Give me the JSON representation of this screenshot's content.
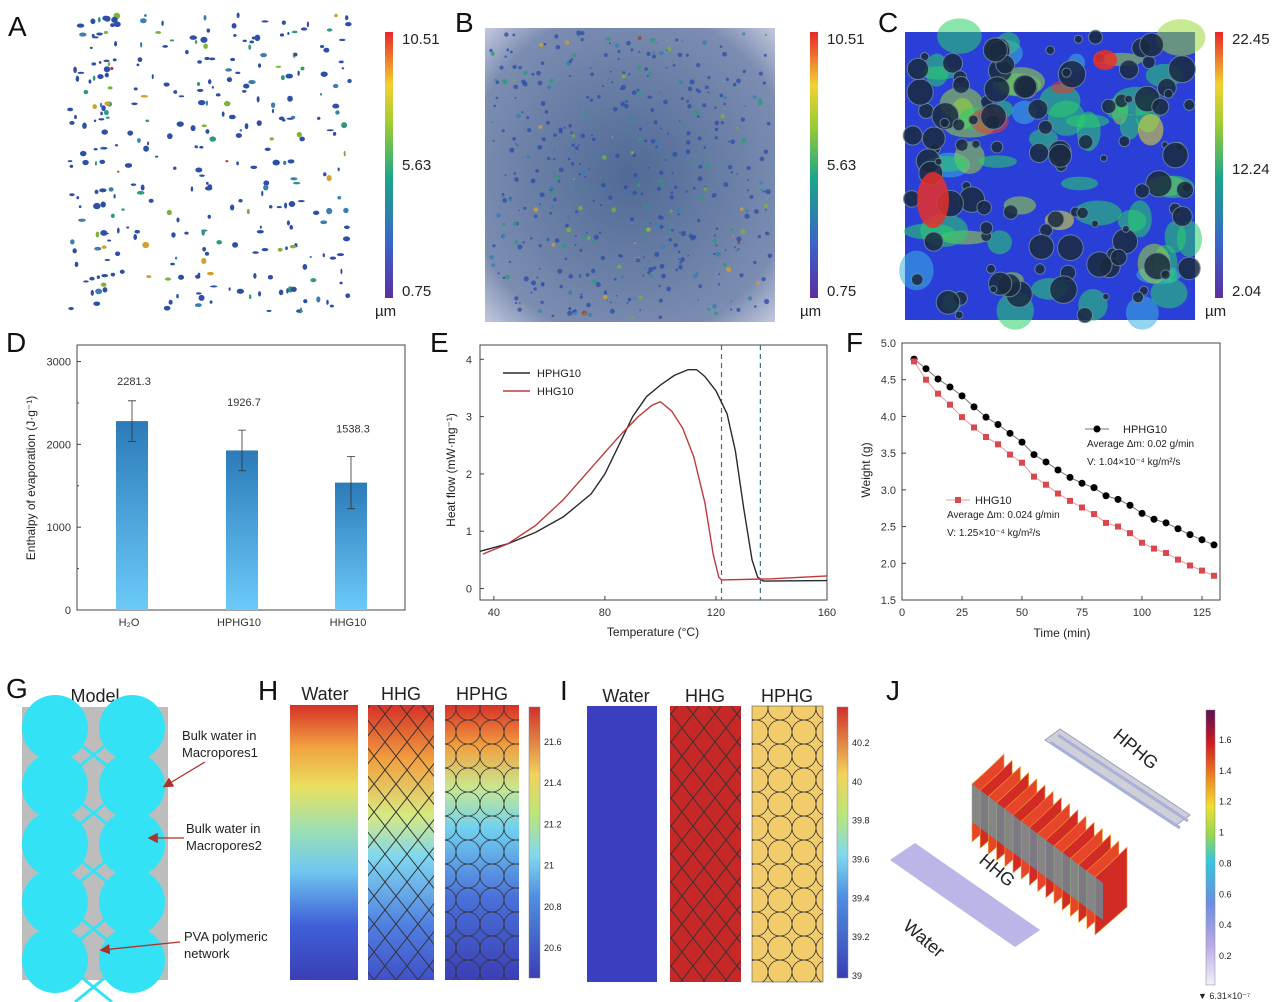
{
  "panels": {
    "A": {
      "label": "A",
      "colorbar": {
        "max": "10.51",
        "mid": "5.63",
        "min": "0.75",
        "unit": "µm"
      }
    },
    "B": {
      "label": "B",
      "colorbar": {
        "max": "10.51",
        "mid": "5.63",
        "min": "0.75",
        "unit": "µm"
      }
    },
    "C": {
      "label": "C",
      "colorbar": {
        "max": "22.45",
        "mid": "12.24",
        "min": "2.04",
        "unit": "µm"
      }
    },
    "D": {
      "label": "D"
    },
    "E": {
      "label": "E"
    },
    "F": {
      "label": "F"
    },
    "G": {
      "label": "G",
      "title": "Model",
      "annotations": [
        [
          "Bulk water in",
          "Macropores1"
        ],
        [
          "Bulk water in",
          "Macropores2"
        ],
        [
          "PVA polymeric",
          "network"
        ]
      ]
    },
    "H": {
      "label": "H",
      "columns": [
        "Water",
        "HHG",
        "HPHG"
      ],
      "colorbar_ticks": [
        "21.6",
        "21.4",
        "21.2",
        "21",
        "20.8",
        "20.6"
      ]
    },
    "I": {
      "label": "I",
      "columns": [
        "Water",
        "HHG",
        "HPHG"
      ],
      "colorbar_ticks": [
        "40.2",
        "40",
        "39.8",
        "39.6",
        "39.4",
        "39.2",
        "39"
      ]
    },
    "J": {
      "label": "J",
      "samples": [
        "Water",
        "HHG",
        "HPHG"
      ],
      "colorbar_ticks": [
        "1.6",
        "1.4",
        "1.2",
        "1",
        "0.8",
        "0.6",
        "0.4",
        "0.2"
      ],
      "colorbar_min": "▼ 6.31×10⁻⁷"
    }
  },
  "chart_data": [
    {
      "id": "D",
      "type": "bar",
      "categories": [
        "H₂O",
        "HPHG10",
        "HHG10"
      ],
      "values": [
        2281.3,
        1926.7,
        1538.3
      ],
      "value_labels": [
        "2281.3",
        "1926.7",
        "1538.3"
      ],
      "errors": [
        245,
        245,
        315
      ],
      "ylabel": "Enthalpy of evaporation (J·g⁻¹)",
      "xlabel": "",
      "ylim": [
        0,
        3200
      ],
      "yticks": [
        "0",
        "1000",
        "2000",
        "3000"
      ],
      "ytick_values": [
        0,
        1000,
        2000,
        3000
      ],
      "colors": {
        "top": "#2b7bb9",
        "bottom": "#6ccaf8"
      }
    },
    {
      "id": "E",
      "type": "line",
      "xlabel": "Temperature (°C)",
      "ylabel": "Heat flow (mW·mg⁻¹)",
      "xlim": [
        35,
        160
      ],
      "ylim": [
        -0.2,
        4.25
      ],
      "xticks": [
        "40",
        "80",
        "120",
        "160"
      ],
      "xtick_values": [
        40,
        80,
        120,
        160
      ],
      "yticks": [
        "0",
        "1",
        "2",
        "3",
        "4"
      ],
      "ytick_values": [
        0,
        1,
        2,
        3,
        4
      ],
      "vlines": [
        122,
        136
      ],
      "legend": "top-left",
      "series": [
        {
          "name": "HPHG10",
          "color": "#2a2a2a",
          "x": [
            35,
            45,
            55,
            65,
            75,
            80,
            85,
            90,
            95,
            100,
            105,
            110,
            113,
            116,
            120,
            124,
            127,
            130,
            133,
            135,
            137,
            160
          ],
          "y": [
            0.65,
            0.78,
            0.98,
            1.25,
            1.65,
            2.0,
            2.5,
            3.0,
            3.35,
            3.55,
            3.72,
            3.82,
            3.82,
            3.7,
            3.45,
            3.05,
            2.4,
            1.4,
            0.5,
            0.2,
            0.13,
            0.14
          ]
        },
        {
          "name": "HHG10",
          "color": "#c0393b",
          "x": [
            36,
            45,
            55,
            65,
            75,
            85,
            92,
            97,
            100,
            104,
            108,
            112,
            116,
            119,
            121,
            122,
            140,
            160
          ],
          "y": [
            0.6,
            0.78,
            1.1,
            1.55,
            2.1,
            2.65,
            3.0,
            3.2,
            3.26,
            3.1,
            2.8,
            2.3,
            1.5,
            0.6,
            0.2,
            0.15,
            0.17,
            0.22
          ]
        }
      ]
    },
    {
      "id": "F",
      "type": "scatter",
      "xlabel": "Time (min)",
      "ylabel": "Weight (g)",
      "xlim": [
        0,
        132.5
      ],
      "ylim": [
        1.5,
        5.0
      ],
      "xticks": [
        "0",
        "25",
        "50",
        "75",
        "100",
        "125"
      ],
      "xtick_values": [
        0,
        25,
        50,
        75,
        100,
        125
      ],
      "yticks": [
        "1.5",
        "2.0",
        "2.5",
        "3.0",
        "3.5",
        "4.0",
        "4.5",
        "5.0"
      ],
      "ytick_values": [
        1.5,
        2.0,
        2.5,
        3.0,
        3.5,
        4.0,
        4.5,
        5.0
      ],
      "x": [
        5,
        10,
        15,
        20,
        25,
        30,
        35,
        40,
        45,
        50,
        55,
        60,
        65,
        70,
        75,
        80,
        85,
        90,
        95,
        100,
        105,
        110,
        115,
        120,
        125,
        130
      ],
      "series": [
        {
          "name": "HPHG10",
          "color": "#000000",
          "marker": "circle",
          "note1": "Average Δm: 0.02 g/min",
          "note2": "V: 1.04×10⁻⁴ kg/m²/s",
          "values": [
            4.78,
            4.65,
            4.51,
            4.4,
            4.28,
            4.13,
            3.99,
            3.89,
            3.77,
            3.65,
            3.48,
            3.38,
            3.27,
            3.17,
            3.09,
            3.03,
            2.92,
            2.87,
            2.79,
            2.68,
            2.6,
            2.55,
            2.47,
            2.39,
            2.32,
            2.25
          ]
        },
        {
          "name": "HHG10",
          "color": "#d9484f",
          "marker": "square",
          "note1": "Average Δm: 0.024 g/min",
          "note2": "V: 1.25×10⁻⁴ kg/m²/s",
          "values": [
            4.75,
            4.5,
            4.31,
            4.16,
            3.99,
            3.85,
            3.72,
            3.62,
            3.48,
            3.37,
            3.18,
            3.07,
            2.95,
            2.85,
            2.76,
            2.67,
            2.55,
            2.5,
            2.41,
            2.28,
            2.2,
            2.14,
            2.05,
            1.97,
            1.9,
            1.83
          ]
        }
      ]
    }
  ]
}
